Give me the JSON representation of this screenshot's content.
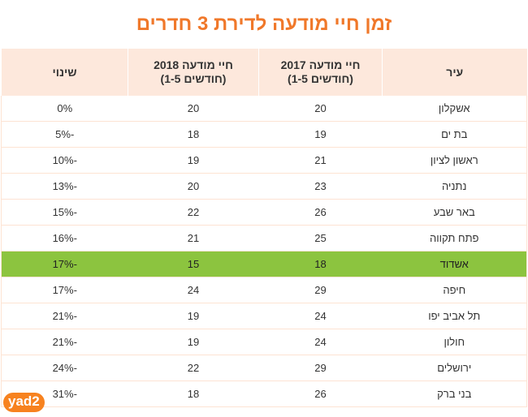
{
  "title": "זמן חיי מודעה לדירת 3 חדרים",
  "headers": [
    "עיר",
    "חיי מודעה 2017",
    "(חודשים 1-5)",
    "חיי מודעה 2018",
    "(חודשים 1-5)",
    "שינוי"
  ],
  "rows": [
    {
      "city": "אשקלון",
      "y2017": "20",
      "y2018": "20",
      "change": "0%"
    },
    {
      "city": "בת ים",
      "y2017": "19",
      "y2018": "18",
      "change": "-5%"
    },
    {
      "city": "ראשון לציון",
      "y2017": "21",
      "y2018": "19",
      "change": "-10%"
    },
    {
      "city": "נתניה",
      "y2017": "23",
      "y2018": "20",
      "change": "-13%"
    },
    {
      "city": "באר שבע",
      "y2017": "26",
      "y2018": "22",
      "change": "-15%"
    },
    {
      "city": "פתח תקווה",
      "y2017": "25",
      "y2018": "21",
      "change": "-16%"
    },
    {
      "city": "אשדוד",
      "y2017": "18",
      "y2018": "15",
      "change": "-17%",
      "highlight": true
    },
    {
      "city": "חיפה",
      "y2017": "29",
      "y2018": "24",
      "change": "-17%"
    },
    {
      "city": "תל אביב יפו",
      "y2017": "24",
      "y2018": "19",
      "change": "-21%"
    },
    {
      "city": "חולון",
      "y2017": "24",
      "y2018": "19",
      "change": "-21%"
    },
    {
      "city": "ירושלים",
      "y2017": "29",
      "y2018": "22",
      "change": "-24%"
    },
    {
      "city": "בני ברק",
      "y2017": "26",
      "y2018": "18",
      "change": "-31%"
    }
  ],
  "highlight_color": "#8cc43f",
  "accent_color": "#f0782a",
  "logo": "yad2"
}
